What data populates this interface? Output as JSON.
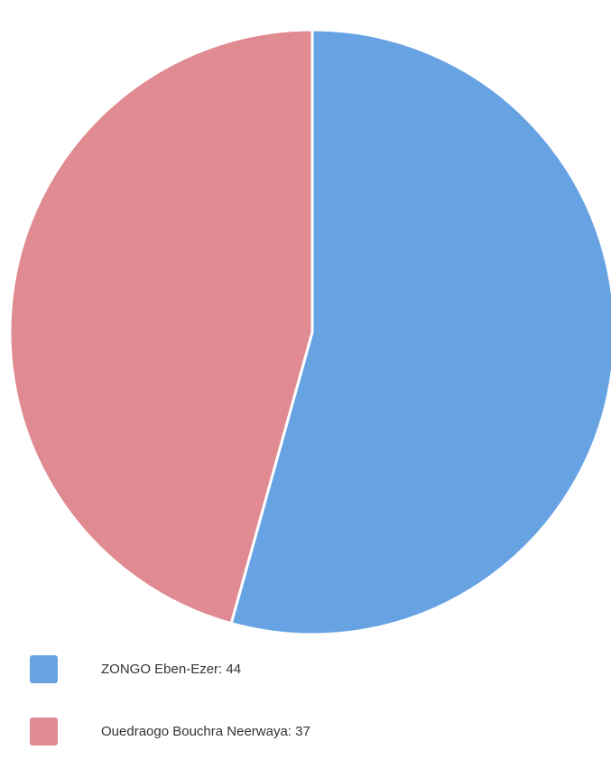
{
  "chart_data": {
    "type": "pie",
    "series": [
      {
        "label": "ZONGO Eben-Ezer: 44",
        "value": 44,
        "color": "#67A3E3"
      },
      {
        "label": "Ouedraogo Bouchra Neerwaya: 37",
        "value": 37,
        "color": "#E08A91"
      }
    ],
    "legend_position": "bottom-left"
  }
}
